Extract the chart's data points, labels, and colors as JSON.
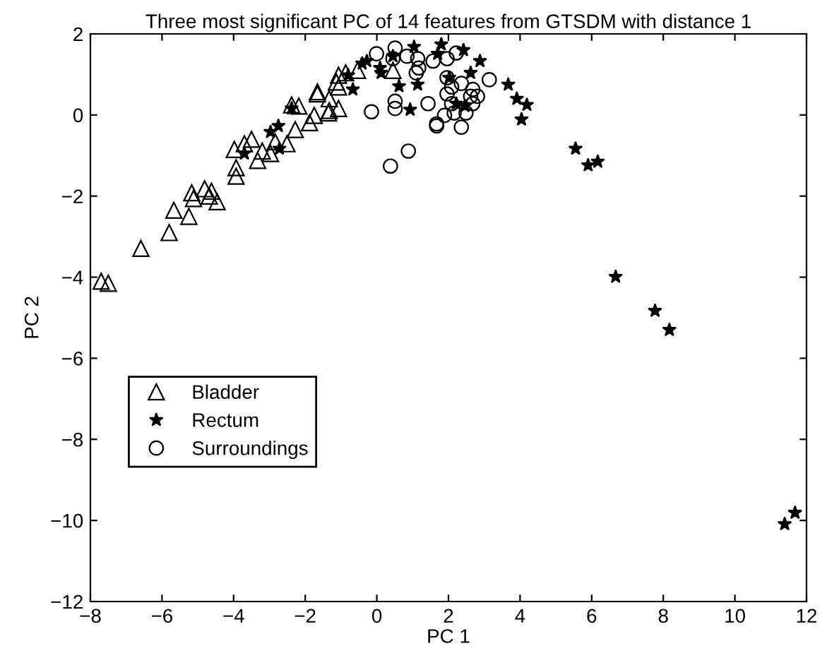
{
  "chart_data": {
    "type": "scatter",
    "title": "Three most significant PC of 14 features from GTSDM with distance 1",
    "xlabel": "PC 1",
    "ylabel": "PC 2",
    "xlim": [
      -8,
      12
    ],
    "ylim": [
      -12,
      2
    ],
    "xticks": [
      -8,
      -6,
      -4,
      -2,
      0,
      2,
      4,
      6,
      8,
      10,
      12
    ],
    "yticks": [
      -12,
      -10,
      -8,
      -6,
      -4,
      -2,
      0,
      2
    ],
    "legend": "bottom left",
    "series": [
      {
        "name": "Bladder",
        "color": "#000000",
        "marker": "triangle",
        "x": [
          -7.7,
          -7.5,
          -6.59,
          -5.8,
          -5.67,
          -5.25,
          -5.17,
          -5.12,
          -4.81,
          -4.68,
          -4.62,
          -4.46,
          -3.93,
          -3.93,
          -3.98,
          -3.7,
          -3.5,
          -3.33,
          -3.2,
          -2.97,
          -2.84,
          -2.51,
          -2.28,
          -2.38,
          -2.18,
          -1.88,
          -1.75,
          -1.66,
          -1.33,
          -1.33,
          -1.07,
          -1.07,
          -0.87,
          -0.54,
          -1.66,
          -1.13,
          -1.35,
          -1.07,
          0.45
        ],
        "values": [
          -4.1,
          -4.15,
          -3.29,
          -2.9,
          -2.35,
          -2.5,
          -1.92,
          -2.06,
          -1.82,
          -2.0,
          -1.88,
          -2.14,
          -1.51,
          -1.3,
          -0.85,
          -0.71,
          -0.6,
          -1.12,
          -0.89,
          -0.95,
          -0.66,
          -0.71,
          -0.36,
          0.25,
          0.22,
          -0.19,
          -0.01,
          0.57,
          0.11,
          0.4,
          0.69,
          0.16,
          1.04,
          1.1,
          0.52,
          0.81,
          0.05,
          0.98,
          1.1
        ]
      },
      {
        "name": "Rectum",
        "color": "#000000",
        "marker": "star",
        "x": [
          5.55,
          5.9,
          6.17,
          6.67,
          7.77,
          8.17,
          11.39,
          11.68,
          3.67,
          3.91,
          4.19,
          4.04,
          2.88,
          2.42,
          1.8,
          1.04,
          0.62,
          0.93,
          0.12,
          1.14,
          2.02,
          2.62,
          2.46,
          1.7,
          0.45,
          0.09,
          2.22,
          -2.75,
          -2.97,
          -0.67,
          -0.41,
          -0.8,
          -2.38,
          -2.72,
          -3.7,
          -0.28
        ],
        "values": [
          -0.83,
          -1.24,
          -1.15,
          -3.99,
          -4.83,
          -5.3,
          -10.09,
          -9.81,
          0.75,
          0.4,
          0.25,
          -0.11,
          1.33,
          1.6,
          1.74,
          1.68,
          0.71,
          0.13,
          1.04,
          0.75,
          0.92,
          1.04,
          0.22,
          1.51,
          1.45,
          1.16,
          0.28,
          -0.27,
          -0.42,
          0.63,
          1.27,
          0.98,
          0.16,
          -0.83,
          -0.95,
          1.33
        ]
      },
      {
        "name": "Surroundings",
        "color": "#000000",
        "marker": "circle",
        "x": [
          0.51,
          -0.01,
          -0.15,
          0.51,
          0.51,
          0.88,
          0.38,
          1.67,
          1.67,
          2.36,
          1.89,
          1.43,
          1.1,
          1.17,
          0.84,
          1.57,
          1.96,
          2.22,
          1.96,
          2.09,
          2.36,
          2.68,
          3.14,
          2.81,
          2.62,
          2.09,
          1.96,
          2.49,
          2.16,
          2.68,
          1.14,
          0.45
        ],
        "values": [
          1.65,
          1.51,
          0.08,
          0.34,
          0.16,
          -0.89,
          -1.26,
          -0.22,
          -0.27,
          -0.3,
          -0.01,
          0.28,
          1.04,
          1.16,
          1.45,
          1.33,
          1.39,
          1.53,
          0.92,
          0.69,
          0.78,
          0.63,
          0.87,
          0.46,
          0.46,
          0.28,
          0.52,
          0.05,
          0.05,
          0.28,
          1.39,
          1.39
        ]
      }
    ]
  }
}
